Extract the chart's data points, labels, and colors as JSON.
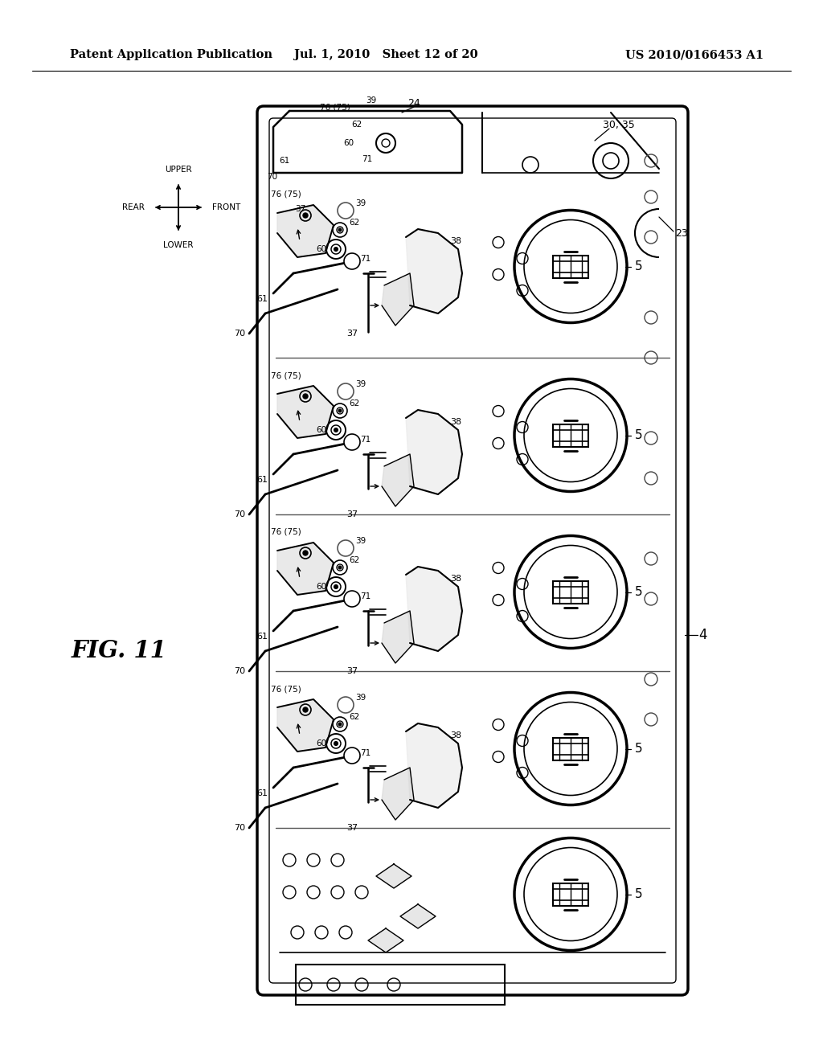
{
  "title_left": "Patent Application Publication",
  "title_mid": "Jul. 1, 2010   Sheet 12 of 20",
  "title_right": "US 2010/0166453 A1",
  "fig_label": "FIG. 11",
  "bg_color": "#ffffff",
  "text_color": "#000000",
  "header_fontsize": 10.5,
  "fig_label_fontsize": 20,
  "dir_labels": [
    "UPPER",
    "LOWER",
    "REAR",
    "FRONT"
  ],
  "slot_labels_left": [
    "76 (75)",
    "39",
    "62",
    "60",
    "71",
    "61",
    "70",
    "37",
    "38"
  ],
  "top_labels": [
    "24",
    "30, 35",
    "23"
  ],
  "cartridge_label": "5",
  "housing_label": "4"
}
